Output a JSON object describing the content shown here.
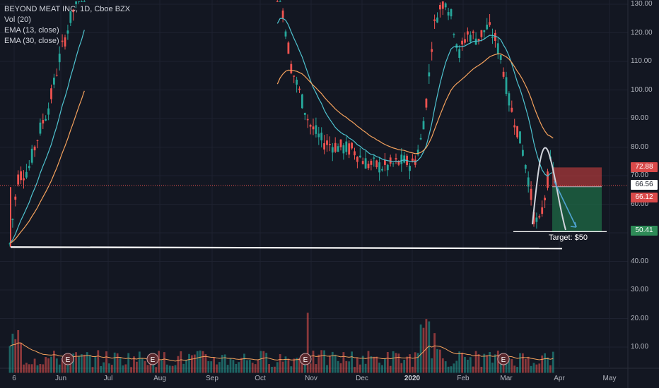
{
  "legend": {
    "title": "BEYOND MEAT INC, 1D, Cboe BZX",
    "vol": "Vol (20)",
    "ema13": "EMA (13, close)",
    "ema30": "EMA (30, close)"
  },
  "price_axis": [
    "130.00",
    "120.00",
    "110.00",
    "100.00",
    "90.00",
    "80.00",
    "70.00",
    "60.00",
    "50.00",
    "40.00",
    "30.00",
    "20.00",
    "10.00"
  ],
  "time_axis": [
    {
      "label": "6",
      "bold": false
    },
    {
      "label": "Jun",
      "bold": false
    },
    {
      "label": "Jul",
      "bold": false
    },
    {
      "label": "Aug",
      "bold": false
    },
    {
      "label": "Sep",
      "bold": false
    },
    {
      "label": "Oct",
      "bold": false
    },
    {
      "label": "Nov",
      "bold": false
    },
    {
      "label": "Dec",
      "bold": false
    },
    {
      "label": "2020",
      "bold": true
    },
    {
      "label": "Feb",
      "bold": false
    },
    {
      "label": "Mar",
      "bold": false
    },
    {
      "label": "Apr",
      "bold": false
    },
    {
      "label": "May",
      "bold": false
    }
  ],
  "price_tags": {
    "stop": "72.88",
    "current": "66.56",
    "entry": "66.12",
    "target": "50.41"
  },
  "target_label": "Target: $50",
  "earnings_marker": "E",
  "colors": {
    "background": "#131722",
    "up": "#26a69a",
    "down": "#ef5350",
    "ema13": "#4fc3d0",
    "ema30": "#f5a25d",
    "stop_zone": "#b23a3a",
    "target_zone": "#1f6b45"
  },
  "chart_data": {
    "type": "candlestick",
    "symbol": "BEYOND MEAT INC",
    "interval": "1D",
    "exchange": "Cboe BZX",
    "ylim": [
      0,
      130
    ],
    "y_ticks": [
      10,
      20,
      30,
      40,
      50,
      60,
      70,
      80,
      90,
      100,
      110,
      120,
      130
    ],
    "indicators": [
      "Vol (20)",
      "EMA (13, close)",
      "EMA (30, close)"
    ],
    "risk_reward": {
      "stop": 72.88,
      "entry": 66.12,
      "target": 50.41,
      "current": 66.56
    },
    "support_line": 45,
    "earnings_events": 4
  }
}
